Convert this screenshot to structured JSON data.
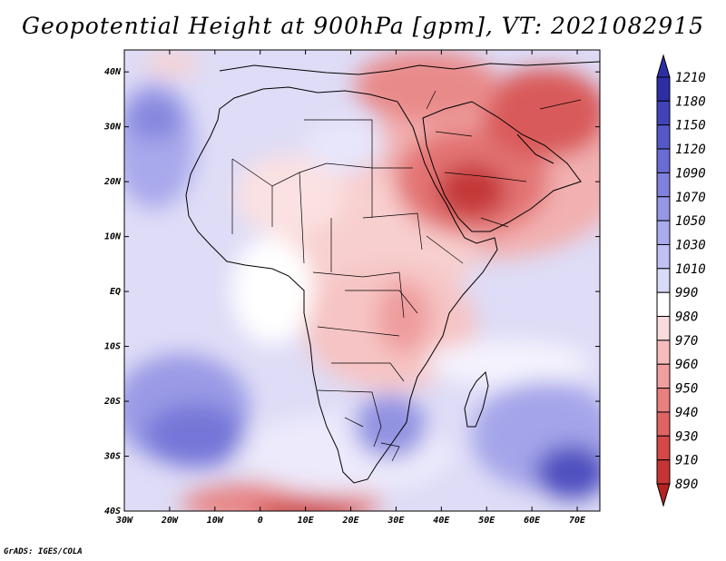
{
  "title": "Geopotential Height at 900hPa [gpm], VT: 2021082915",
  "credit": "GrADS: IGES/COLA",
  "map": {
    "lat_ticks": [
      "40N",
      "30N",
      "20N",
      "10N",
      "EQ",
      "10S",
      "20S",
      "30S",
      "40S"
    ],
    "lon_ticks": [
      "30W",
      "20W",
      "10W",
      "0",
      "10E",
      "20E",
      "30E",
      "40E",
      "50E",
      "60E",
      "70E"
    ],
    "lon_range": [
      -30,
      75
    ],
    "lat_range": [
      -40,
      44
    ]
  },
  "colorbar": {
    "levels": [
      "1210",
      "1180",
      "1150",
      "1120",
      "1090",
      "1070",
      "1050",
      "1030",
      "1010",
      "990",
      "980",
      "970",
      "960",
      "950",
      "940",
      "930",
      "910",
      "890"
    ],
    "colors": [
      "#2d2ea6",
      "#4143b8",
      "#5657c8",
      "#6b6bd4",
      "#8080de",
      "#9696e6",
      "#aaaaee",
      "#c0c0f4",
      "#d9d9fa",
      "#ffffff",
      "#fbdcdc",
      "#f6bcbc",
      "#f09e9e",
      "#e98080",
      "#e06363",
      "#d54848",
      "#c83434",
      "#b52222"
    ]
  }
}
